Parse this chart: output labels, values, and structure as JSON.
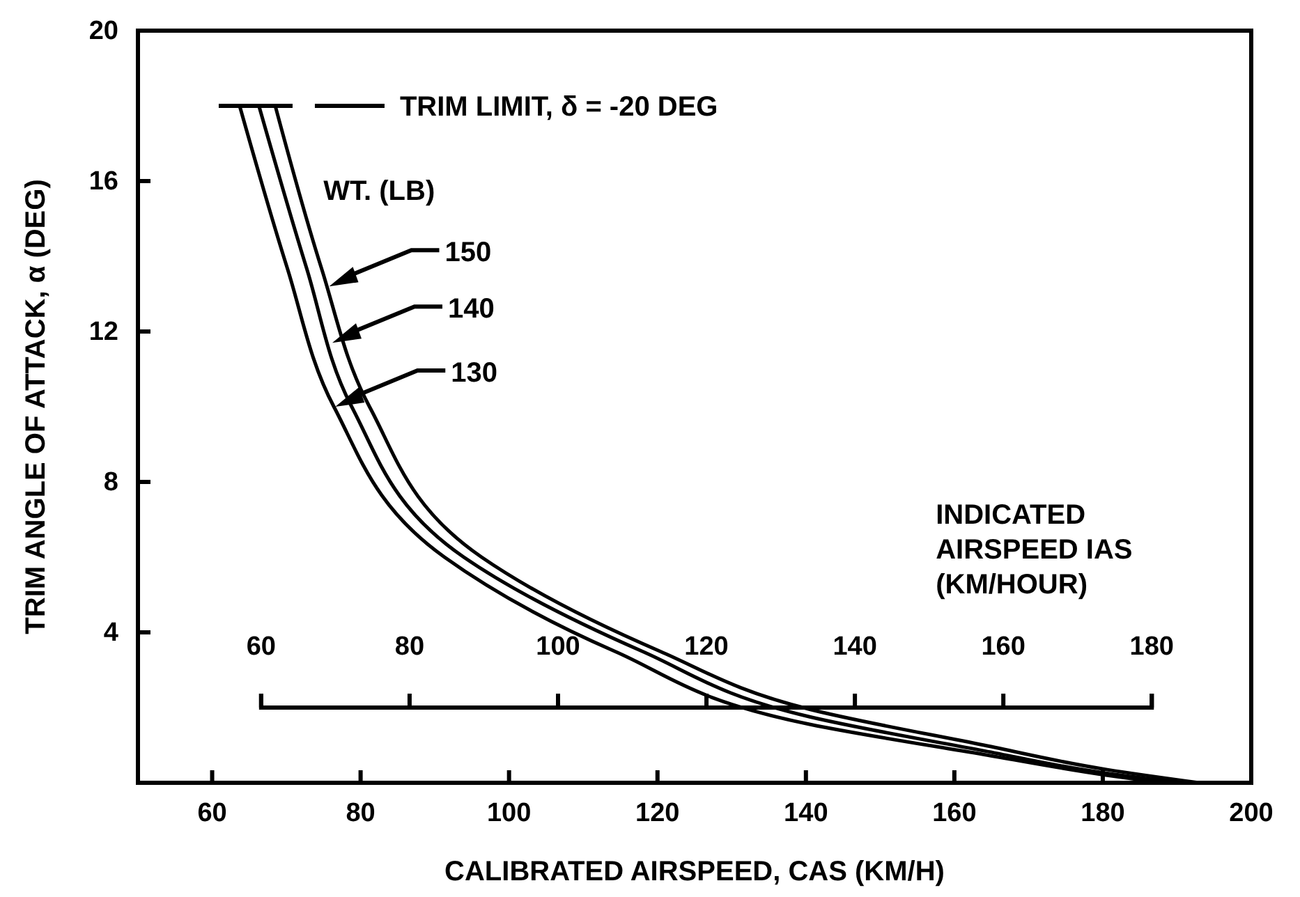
{
  "chart_data": {
    "type": "line",
    "xlabel": "CALIBRATED AIRSPEED, CAS (KM/H)",
    "ylabel": "TRIM ANGLE OF ATTACK, α (DEG)",
    "x2label": "INDICATED AIRSPEED IAS (KM/HOUR)",
    "xlim": [
      50,
      200
    ],
    "xticks": [
      60,
      80,
      100,
      120,
      140,
      160,
      180,
      200
    ],
    "ylim": [
      0,
      20
    ],
    "yticks": [
      4,
      8,
      12,
      16,
      20
    ],
    "x2lim": [
      43.4,
      193.4
    ],
    "x2ticks": [
      60,
      80,
      100,
      120,
      140,
      160,
      180
    ],
    "legend_title": "WT. (LB)",
    "grid": false,
    "legend": "top left",
    "line_style": "solid",
    "marker": "none",
    "annotations": [
      "TRIM LIMIT, δ = -20 DEG"
    ],
    "series": [
      {
        "name": "150",
        "color": "#000000",
        "x": [
          68.5,
          74.7,
          81.2,
          96.3,
          120.3,
          140.6,
          164,
          180.6,
          193
        ],
        "values": [
          18,
          13.7,
          10,
          6,
          3.5,
          1.95,
          1.0,
          0.35,
          0
        ]
      },
      {
        "name": "140",
        "color": "#000000",
        "x": [
          66.3,
          72.7,
          78.8,
          93.9,
          117.9,
          140.6,
          164,
          180.6,
          190.5
        ],
        "values": [
          18,
          13.7,
          10,
          6,
          3.5,
          1.75,
          0.85,
          0.25,
          0
        ]
      },
      {
        "name": "130",
        "color": "#000000",
        "x": [
          63.7,
          70.1,
          76.4,
          91.3,
          114.2,
          140.6,
          164,
          180.6,
          188
        ],
        "values": [
          18,
          13.7,
          10,
          6,
          3.5,
          1.55,
          0.75,
          0.2,
          0
        ]
      }
    ]
  }
}
